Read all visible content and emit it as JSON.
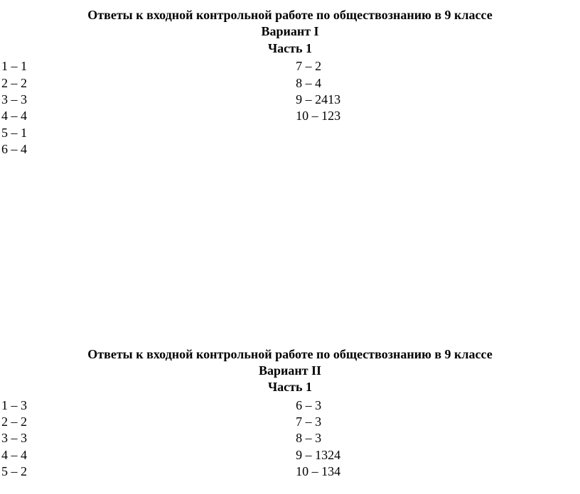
{
  "variant1": {
    "title": "Ответы к входной контрольной работе по обществознанию в 9 классе",
    "variant_label": "Вариант I",
    "part_label": "Часть 1",
    "left_answers": [
      "1 – 1",
      "2 – 2",
      "3 – 3",
      "4 – 4",
      "5 – 1",
      "6 –  4"
    ],
    "right_answers": [
      "7 – 2",
      "8 – 4",
      "9 – 2413",
      "10 – 123"
    ]
  },
  "variant2": {
    "title": "Ответы к входной контрольной работе по обществознанию в 9 классе",
    "variant_label": "Вариант II",
    "part_label": "Часть 1",
    "left_answers": [
      "1 – 3",
      "2 – 2",
      "3 – 3",
      "4 – 4",
      "5 – 2"
    ],
    "right_answers": [
      "6 – 3",
      "7 – 3",
      "8 – 3",
      "9 – 1324",
      "10 – 134"
    ]
  }
}
